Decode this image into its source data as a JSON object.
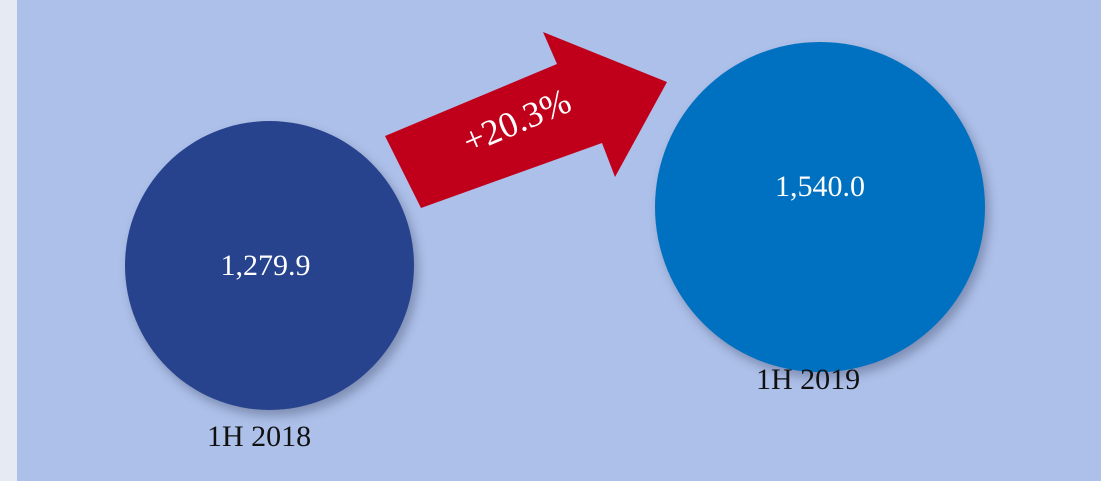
{
  "colors": {
    "background": "#adc0e9",
    "left_bubble": "#27438d",
    "right_bubble": "#0070c0",
    "arrow": "#c0001b",
    "text_dark": "#111111",
    "text_light": "#ffffff"
  },
  "chart_data": {
    "type": "bubble-comparison",
    "title": "",
    "categories": [
      "1H 2018",
      "1H 2019"
    ],
    "values": [
      1279.9,
      1540.0
    ],
    "value_labels": [
      "1,279.9",
      "1,540.0"
    ],
    "change_label": "+20.3%",
    "change_percent": 20.3
  }
}
